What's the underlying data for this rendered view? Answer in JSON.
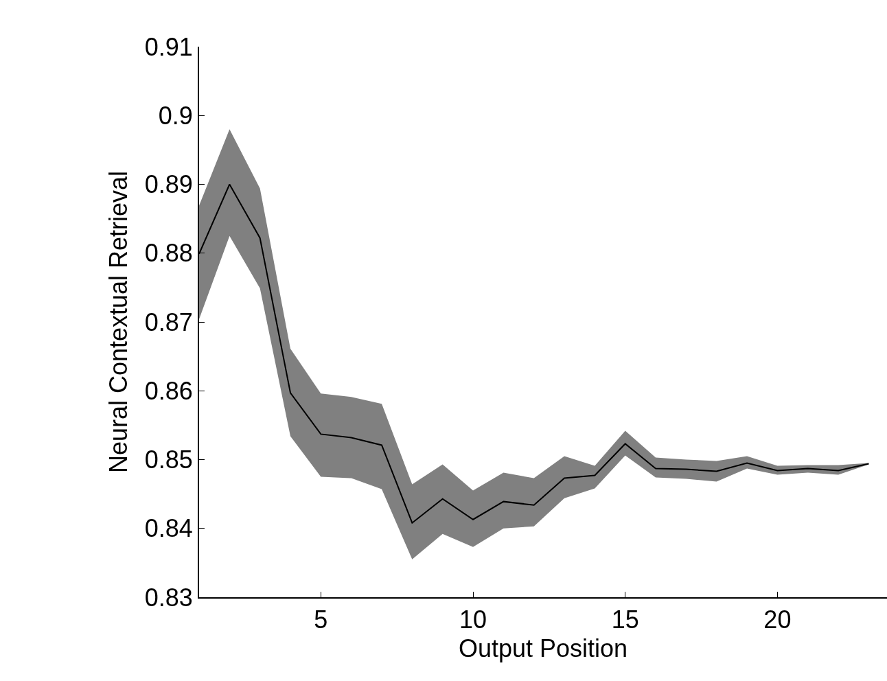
{
  "chart_data": {
    "type": "line",
    "xlabel": "Output Position",
    "ylabel": "Neural Contextual Retrieval",
    "x": [
      1,
      2,
      3,
      4,
      5,
      6,
      7,
      8,
      9,
      10,
      11,
      12,
      13,
      14,
      15,
      16,
      17,
      18,
      19,
      20,
      21,
      22,
      23
    ],
    "series": [
      {
        "color": "#000000",
        "values": [
          0.8799,
          0.89,
          0.8822,
          0.8597,
          0.8537,
          0.8532,
          0.8521,
          0.8408,
          0.8443,
          0.8413,
          0.8439,
          0.8434,
          0.8473,
          0.8477,
          0.8523,
          0.8487,
          0.8486,
          0.8483,
          0.8495,
          0.8484,
          0.8487,
          0.8484,
          0.8494
        ],
        "lower": [
          0.8704,
          0.8825,
          0.8749,
          0.8534,
          0.8475,
          0.8473,
          0.8457,
          0.8355,
          0.8392,
          0.8373,
          0.84,
          0.8403,
          0.8444,
          0.8458,
          0.8506,
          0.8474,
          0.8472,
          0.8468,
          0.8487,
          0.8478,
          0.8481,
          0.8478,
          0.8493
        ],
        "upper": [
          0.8869,
          0.898,
          0.8894,
          0.8661,
          0.8596,
          0.8591,
          0.8581,
          0.8464,
          0.8493,
          0.8455,
          0.8481,
          0.8473,
          0.8505,
          0.8491,
          0.8542,
          0.8503,
          0.85,
          0.8498,
          0.8505,
          0.8491,
          0.8492,
          0.8492,
          0.8495
        ]
      }
    ],
    "xlim": [
      1,
      23.6
    ],
    "xticks": [
      5,
      10,
      15,
      20
    ],
    "ylim": [
      0.83,
      0.91
    ],
    "yticks": [
      0.83,
      0.84,
      0.85,
      0.86,
      0.87,
      0.88,
      0.89,
      0.9,
      0.91
    ],
    "grid": false,
    "marker": "none",
    "line_style": "solid"
  }
}
